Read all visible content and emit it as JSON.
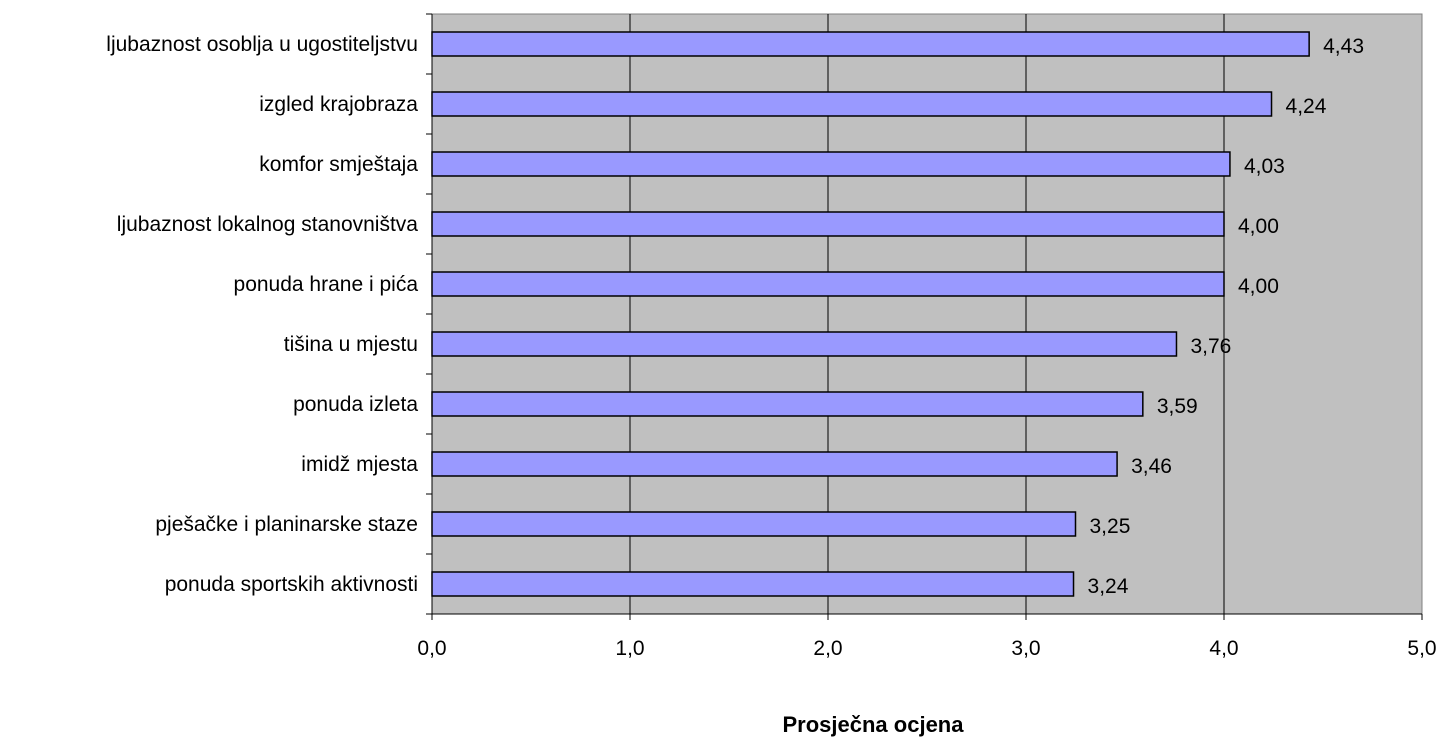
{
  "chart_data": {
    "type": "bar",
    "orientation": "horizontal",
    "categories": [
      "ljubaznost osoblja u ugostiteljstvu",
      "izgled krajobraza",
      "komfor smještaja",
      "ljubaznost lokalnog stanovništva",
      "ponuda hrane i pića",
      "tišina u mjestu",
      "ponuda izleta",
      "imidž mjesta",
      "pješačke i planinarske staze",
      "ponuda sportskih aktivnosti"
    ],
    "values": [
      4.43,
      4.24,
      4.03,
      4.0,
      4.0,
      3.76,
      3.59,
      3.46,
      3.25,
      3.24
    ],
    "value_labels": [
      "4,43",
      "4,24",
      "4,03",
      "4,00",
      "4,00",
      "3,76",
      "3,59",
      "3,46",
      "3,25",
      "3,24"
    ],
    "title": "",
    "xlabel": "Prosječna ocjena",
    "ylabel": "",
    "xlim": [
      0,
      5
    ],
    "x_ticks": [
      0,
      1,
      2,
      3,
      4,
      5
    ],
    "x_tick_labels": [
      "0,0",
      "1,0",
      "2,0",
      "3,0",
      "4,0",
      "5,0"
    ],
    "grid": "vertical",
    "legend": "none",
    "colors": {
      "bar_fill": "#9999ff",
      "bar_stroke": "#000000",
      "plot_background": "#c0c0c0",
      "grid": "#000000"
    }
  }
}
